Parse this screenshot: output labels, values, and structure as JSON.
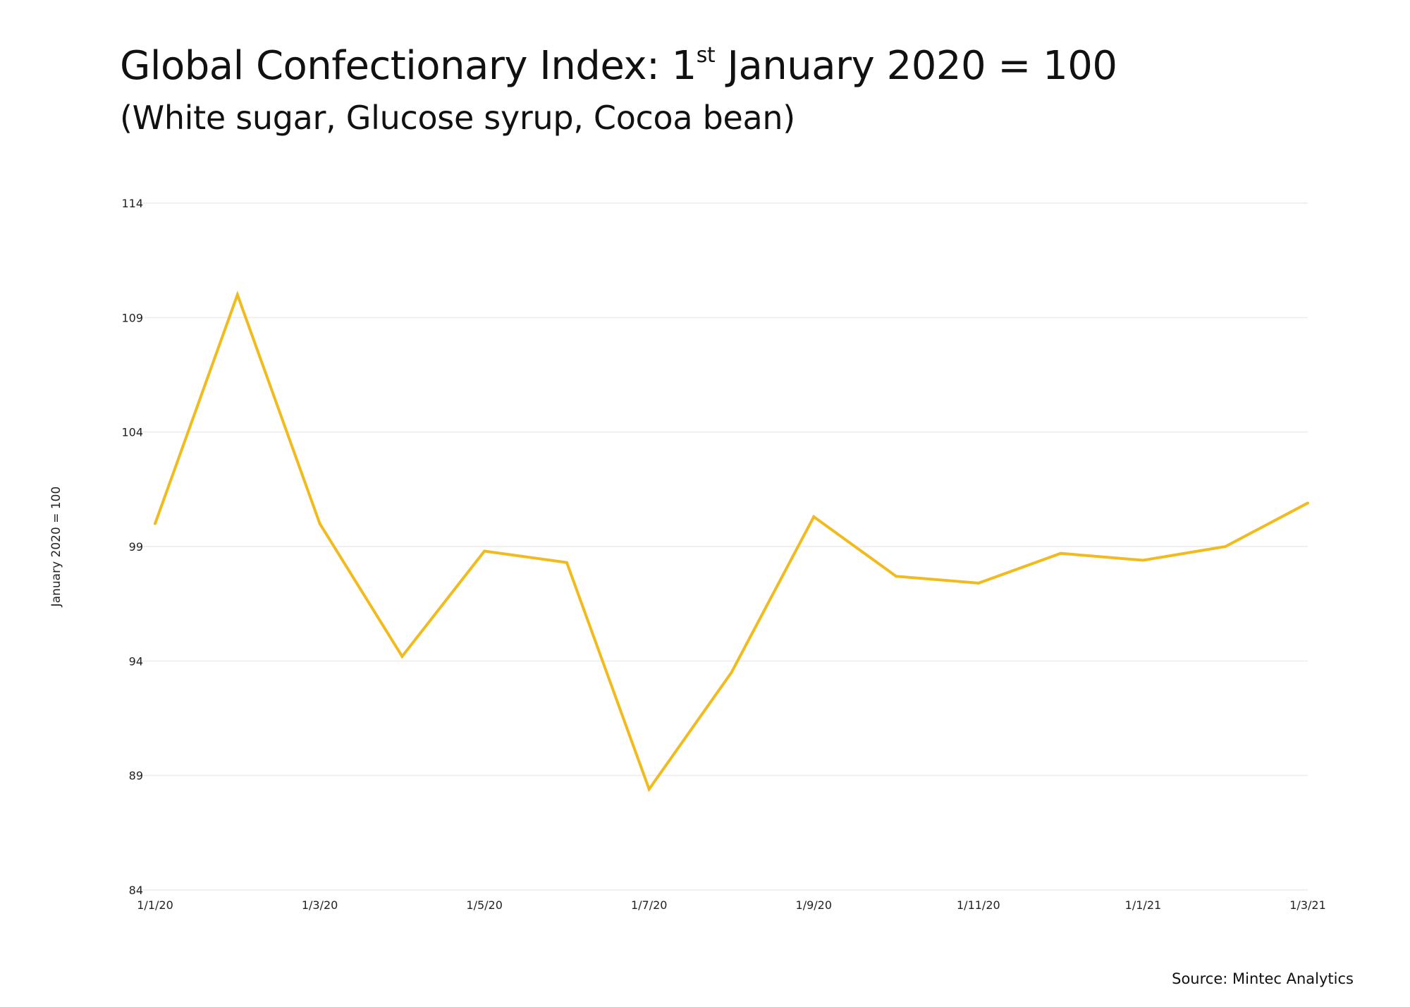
{
  "header": {
    "title_prefix": "Global Confectionary Index: 1",
    "title_sup": "st",
    "title_suffix": " January 2020 = 100",
    "subtitle": "(White sugar, Glucose syrup, Cocoa bean)"
  },
  "footer": {
    "source": "Source: Mintec Analytics"
  },
  "chart_data": {
    "type": "line",
    "ylabel": "January 2020 = 100",
    "xlabel": "",
    "ylim": [
      84,
      114
    ],
    "yticks": [
      84,
      89,
      94,
      99,
      104,
      109,
      114
    ],
    "grid": true,
    "line_color": "#F2BB1D",
    "xtick_labels": [
      "1/1/20",
      "1/3/20",
      "1/5/20",
      "1/7/20",
      "1/9/20",
      "1/11/20",
      "1/1/21",
      "1/3/21"
    ],
    "x": [
      "1/1/20",
      "1/2/20",
      "1/3/20",
      "1/4/20",
      "1/5/20",
      "1/6/20",
      "1/7/20",
      "1/8/20",
      "1/9/20",
      "1/10/20",
      "1/11/20",
      "1/12/20",
      "1/1/21",
      "1/2/21",
      "1/3/21"
    ],
    "series": [
      {
        "values": [
          100.0,
          110.0,
          100.0,
          94.2,
          98.8,
          98.3,
          88.4,
          93.5,
          100.3,
          97.7,
          97.4,
          98.7,
          98.4,
          99.0,
          100.9
        ]
      }
    ]
  }
}
